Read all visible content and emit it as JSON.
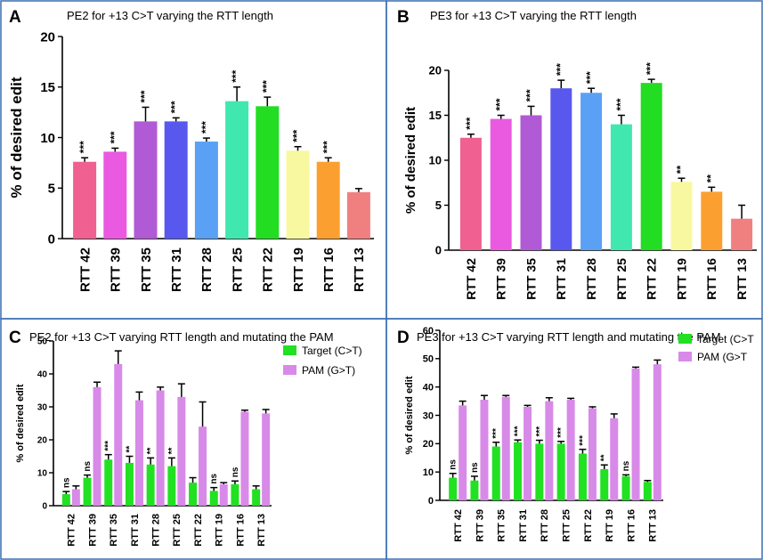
{
  "chart_data": [
    {
      "panel": "A",
      "type": "bar",
      "title": "PE2 for +13 C>T varying the RTT length",
      "xlabel": "",
      "ylabel": "% of desired edit",
      "ylim": [
        0,
        20
      ],
      "yticks": [
        0,
        5,
        10,
        15,
        20
      ],
      "categories": [
        "RTT 42",
        "RTT 39",
        "RTT 35",
        "RTT 31",
        "RTT 28",
        "RTT 25",
        "RTT 22",
        "RTT 19",
        "RTT 16",
        "RTT 13"
      ],
      "values": [
        7.6,
        8.6,
        11.6,
        11.6,
        9.6,
        13.6,
        13.1,
        8.7,
        7.6,
        4.6
      ],
      "errors": [
        0.4,
        0.35,
        1.4,
        0.35,
        0.35,
        1.4,
        0.9,
        0.4,
        0.4,
        0.35
      ],
      "significance": [
        "***",
        "***",
        "***",
        "***",
        "***",
        "***",
        "***",
        "***",
        "***",
        ""
      ],
      "colors": [
        "#f06090",
        "#e95ae0",
        "#b05ad6",
        "#5858ee",
        "#5aa0f5",
        "#40e8b0",
        "#22dd22",
        "#f8f8a0",
        "#fba030",
        "#f08080"
      ],
      "grid": false,
      "legend": "none"
    },
    {
      "panel": "B",
      "type": "bar",
      "title": "PE3 for +13 C>T varying the RTT length",
      "xlabel": "",
      "ylabel": "% of desired edit",
      "ylim": [
        0,
        20
      ],
      "yticks": [
        0,
        5,
        10,
        15,
        20
      ],
      "categories": [
        "RTT 42",
        "RTT 39",
        "RTT 35",
        "RTT 31",
        "RTT 28",
        "RTT 25",
        "RTT 22",
        "RTT 19",
        "RTT 16",
        "RTT 13"
      ],
      "values": [
        12.5,
        14.6,
        15.0,
        18.0,
        17.5,
        14.0,
        18.6,
        7.6,
        6.5,
        3.5
      ],
      "errors": [
        0.4,
        0.4,
        1.0,
        0.9,
        0.5,
        1.0,
        0.4,
        0.4,
        0.5,
        1.5
      ],
      "significance": [
        "***",
        "***",
        "***",
        "***",
        "***",
        "***",
        "***",
        "**",
        "**",
        ""
      ],
      "colors": [
        "#f06090",
        "#e95ae0",
        "#b05ad6",
        "#5858ee",
        "#5aa0f5",
        "#40e8b0",
        "#22dd22",
        "#f8f8a0",
        "#fba030",
        "#f08080"
      ],
      "grid": false,
      "legend": "none"
    },
    {
      "panel": "C",
      "type": "bar",
      "title": "PE2 for +13 C>T varying RTT length and mutating the PAM",
      "xlabel": "",
      "ylabel": "% of desired edit",
      "ylim": [
        0,
        50
      ],
      "yticks": [
        0,
        10,
        20,
        30,
        40,
        50
      ],
      "categories": [
        "RTT 42",
        "RTT 39",
        "RTT 35",
        "RTT 31",
        "RTT 28",
        "RTT 25",
        "RTT 22",
        "RTT 19",
        "RTT 16",
        "RTT 13"
      ],
      "series": [
        {
          "name": "Target (C>T)",
          "color": "#22e022",
          "values": [
            3.5,
            8.5,
            14.0,
            13.0,
            12.5,
            12.0,
            7.0,
            4.5,
            6.5,
            5.0
          ],
          "errors": [
            0.8,
            0.8,
            1.5,
            2.0,
            2.0,
            2.5,
            1.5,
            1.0,
            1.0,
            1.0
          ]
        },
        {
          "name": "PAM  (G>T)",
          "color": "#d88ae8",
          "values": [
            5.0,
            36.0,
            43.0,
            32.0,
            35.0,
            33.0,
            24.0,
            6.5,
            28.5,
            28.0
          ],
          "errors": [
            1.0,
            1.5,
            4.0,
            2.5,
            1.0,
            4.0,
            7.5,
            0.5,
            0.5,
            1.2
          ]
        }
      ],
      "significance": [
        "ns",
        "ns",
        "***",
        "**",
        "**",
        "**",
        "",
        "ns",
        "ns",
        ""
      ],
      "grid": false,
      "legend": "top-right"
    },
    {
      "panel": "D",
      "type": "bar",
      "title": "PE3 for +13 C>T varying RTT length and mutating the PAM",
      "xlabel": "",
      "ylabel": "% of desired edit",
      "ylim": [
        0,
        60
      ],
      "yticks": [
        0,
        10,
        20,
        30,
        40,
        50,
        60
      ],
      "categories": [
        "RTT 42",
        "RTT 39",
        "RTT 35",
        "RTT 31",
        "RTT 28",
        "RTT 25",
        "RTT 22",
        "RTT 19",
        "RTT 16",
        "RTT 13"
      ],
      "series": [
        {
          "name": "Target (C>T",
          "color": "#22e022",
          "values": [
            8.0,
            7.0,
            19.0,
            20.5,
            20.0,
            20.0,
            16.5,
            11.0,
            8.5,
            6.5
          ],
          "errors": [
            1.5,
            1.5,
            1.5,
            0.8,
            1.2,
            0.8,
            1.5,
            1.5,
            0.5,
            0.5
          ]
        },
        {
          "name": "PAM  (G>T",
          "color": "#d88ae8",
          "values": [
            33.5,
            35.5,
            36.5,
            33.0,
            35.0,
            35.5,
            32.5,
            29.0,
            46.5,
            48.0
          ],
          "errors": [
            1.5,
            1.5,
            0.5,
            0.5,
            1.2,
            0.5,
            0.5,
            1.5,
            0.5,
            1.5
          ]
        }
      ],
      "significance": [
        "ns",
        "ns",
        "***",
        "***",
        "***",
        "***",
        "***",
        "**",
        "ns",
        ""
      ],
      "grid": false,
      "legend": "top-right"
    }
  ]
}
